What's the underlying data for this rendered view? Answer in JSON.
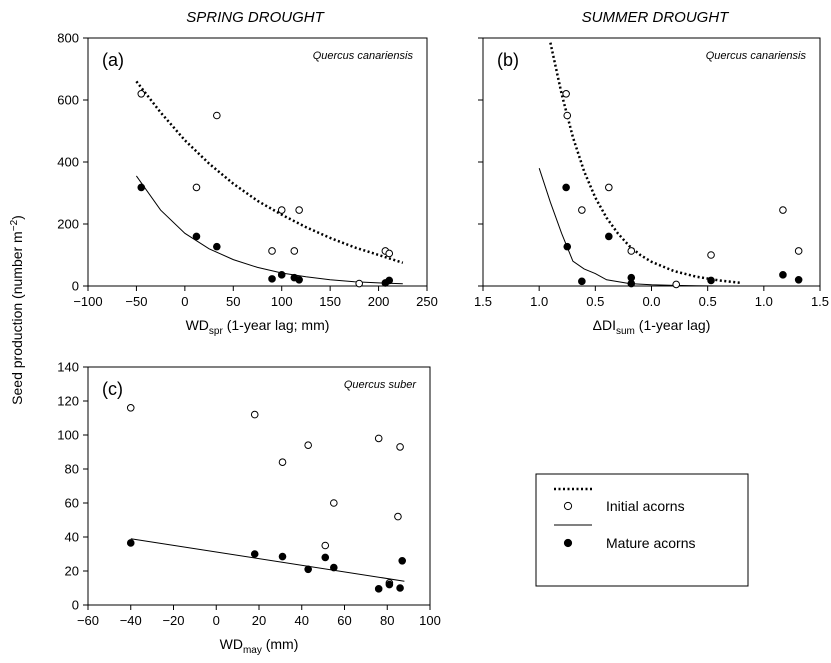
{
  "headers": {
    "left": "SPRING DROUGHT",
    "right": "SUMMER DROUGHT"
  },
  "ylabel": "Seed production (number m",
  "ylabel_sup": "−2",
  "ylabel_close": ")",
  "legend": {
    "initial": "Initial acorns",
    "mature": "Mature acorns"
  },
  "colors": {
    "ink": "#000000",
    "open_fill": "#ffffff"
  },
  "chart_data": [
    {
      "type": "scatter",
      "panel": "(a)",
      "species": "Quercus canariensis",
      "xlabel_main": "WD",
      "xlabel_sub": "spr",
      "xlabel_rest": " (1-year lag; mm)",
      "xlim": [
        -100,
        250
      ],
      "ylim": [
        0,
        800
      ],
      "xticks": [
        "−100",
        "−50",
        "0",
        "50",
        "100",
        "150",
        "200",
        "250"
      ],
      "xtick_values": [
        -100,
        -50,
        0,
        50,
        100,
        150,
        200,
        250
      ],
      "yticks": [
        "0",
        "200",
        "400",
        "600",
        "800"
      ],
      "ytick_values": [
        0,
        200,
        400,
        600,
        800
      ],
      "series": [
        {
          "name": "Initial acorns",
          "marker": "open-circle",
          "x": [
            -45,
            12,
            33,
            90,
            100,
            113,
            118,
            180,
            207,
            211
          ],
          "y": [
            620,
            318,
            550,
            113,
            245,
            113,
            245,
            8,
            113,
            105
          ]
        },
        {
          "name": "Mature acorns",
          "marker": "filled-circle",
          "x": [
            -45,
            12,
            33,
            90,
            100,
            113,
            118,
            207,
            211
          ],
          "y": [
            318,
            160,
            127,
            23,
            36,
            27,
            20,
            10,
            18
          ]
        }
      ],
      "fits": [
        {
          "series": "Initial acorns",
          "style": "dotted",
          "x": [
            -50,
            -25,
            0,
            25,
            50,
            75,
            100,
            125,
            150,
            175,
            200,
            225
          ],
          "y": [
            660,
            560,
            470,
            395,
            330,
            275,
            230,
            190,
            155,
            125,
            100,
            75
          ]
        },
        {
          "series": "Mature acorns",
          "style": "solid",
          "x": [
            -50,
            -25,
            0,
            25,
            50,
            75,
            100,
            125,
            150,
            175,
            200,
            225
          ],
          "y": [
            355,
            245,
            170,
            120,
            85,
            60,
            42,
            30,
            20,
            14,
            10,
            7
          ]
        }
      ]
    },
    {
      "type": "scatter",
      "panel": "(b)",
      "species": "Quercus canariensis",
      "xlabel_main": "ΔDI",
      "xlabel_sub": "sum",
      "xlabel_rest": " (1-year lag)",
      "xlim": [
        -1.5,
        1.5
      ],
      "ylim": [
        0,
        800
      ],
      "xticks": [
        "1.5",
        "1.0",
        "0.5",
        "0.0",
        "0.5",
        "1.0",
        "1.5"
      ],
      "xtick_values": [
        -1.5,
        -1.0,
        -0.5,
        0.0,
        0.5,
        1.0,
        1.5
      ],
      "yticks": [],
      "ytick_values": [
        0,
        200,
        400,
        600,
        800
      ],
      "series": [
        {
          "name": "Initial acorns",
          "marker": "open-circle",
          "x": [
            -0.76,
            -0.75,
            -0.62,
            -0.38,
            -0.18,
            0.22,
            0.53,
            1.17,
            1.31
          ],
          "y": [
            620,
            550,
            245,
            318,
            113,
            5,
            100,
            245,
            113
          ]
        },
        {
          "name": "Mature acorns",
          "marker": "filled-circle",
          "x": [
            -0.76,
            -0.75,
            -0.62,
            -0.38,
            -0.18,
            -0.18,
            0.53,
            1.17,
            1.31
          ],
          "y": [
            318,
            127,
            15,
            160,
            27,
            8,
            18,
            36,
            20
          ]
        }
      ],
      "fits": [
        {
          "series": "Initial acorns",
          "style": "dotted",
          "x": [
            -0.9,
            -0.8,
            -0.7,
            -0.6,
            -0.5,
            -0.4,
            -0.3,
            -0.2,
            -0.1,
            0.0,
            0.2,
            0.4,
            0.6,
            0.8
          ],
          "y": [
            785,
            620,
            480,
            370,
            285,
            220,
            170,
            130,
            100,
            78,
            48,
            30,
            18,
            10
          ]
        },
        {
          "series": "Mature acorns",
          "style": "solid",
          "x": [
            -1.0,
            -0.9,
            -0.8,
            -0.7,
            -0.6,
            -0.5,
            -0.4,
            -0.2,
            0.0,
            0.2,
            0.4,
            0.6,
            0.8
          ],
          "y": [
            380,
            270,
            170,
            80,
            55,
            40,
            20,
            8,
            4,
            2,
            1,
            0,
            0
          ]
        }
      ]
    },
    {
      "type": "scatter",
      "panel": "(c)",
      "species": "Quercus suber",
      "xlabel_main": "WD",
      "xlabel_sub": "may",
      "xlabel_rest": " (mm)",
      "xlim": [
        -60,
        100
      ],
      "ylim": [
        0,
        140
      ],
      "xticks": [
        "−60",
        "−40",
        "−20",
        "0",
        "20",
        "40",
        "60",
        "80",
        "100"
      ],
      "xtick_values": [
        -60,
        -40,
        -20,
        0,
        20,
        40,
        60,
        80,
        100
      ],
      "yticks": [
        "0",
        "20",
        "40",
        "60",
        "80",
        "100",
        "120",
        "140"
      ],
      "ytick_values": [
        0,
        20,
        40,
        60,
        80,
        100,
        120,
        140
      ],
      "series": [
        {
          "name": "Initial acorns",
          "marker": "open-circle",
          "x": [
            -40,
            18,
            31,
            43,
            51,
            55,
            76,
            81,
            85,
            86
          ],
          "y": [
            116,
            112,
            84,
            94,
            35,
            60,
            98,
            13,
            52,
            93
          ]
        },
        {
          "name": "Mature acorns",
          "marker": "filled-circle",
          "x": [
            -40,
            18,
            31,
            43,
            51,
            55,
            76,
            81,
            86,
            87
          ],
          "y": [
            36.5,
            30,
            28.5,
            21,
            28,
            22,
            9.5,
            12,
            10,
            26
          ]
        }
      ],
      "fits": [
        {
          "series": "Mature acorns",
          "style": "solid",
          "x": [
            -40,
            88
          ],
          "y": [
            39,
            14
          ]
        }
      ]
    }
  ]
}
